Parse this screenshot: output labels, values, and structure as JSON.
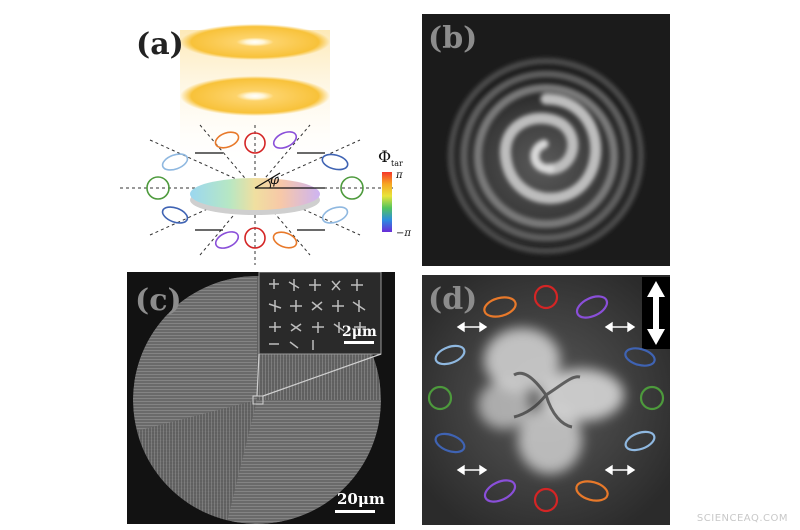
{
  "panels": {
    "a": {
      "label": "(a)",
      "colorbar_title": "Φ",
      "colorbar_sub": "tar",
      "colorbar_top": "π",
      "colorbar_bottom": "−π",
      "angle_symbol": "φ"
    },
    "b": {
      "label": "(b)"
    },
    "c": {
      "label": "(c)",
      "inset_scale": "2μm",
      "main_scale": "20μm"
    },
    "d": {
      "label": "(d)"
    }
  },
  "colors": {
    "red": "#d42525",
    "orange": "#e8792a",
    "purple": "#8a4fd9",
    "blue": "#3f63b3",
    "lightblue": "#8fb8e0",
    "green": "#4d9a3c"
  },
  "watermark": "SCIENCEAQ.COM"
}
